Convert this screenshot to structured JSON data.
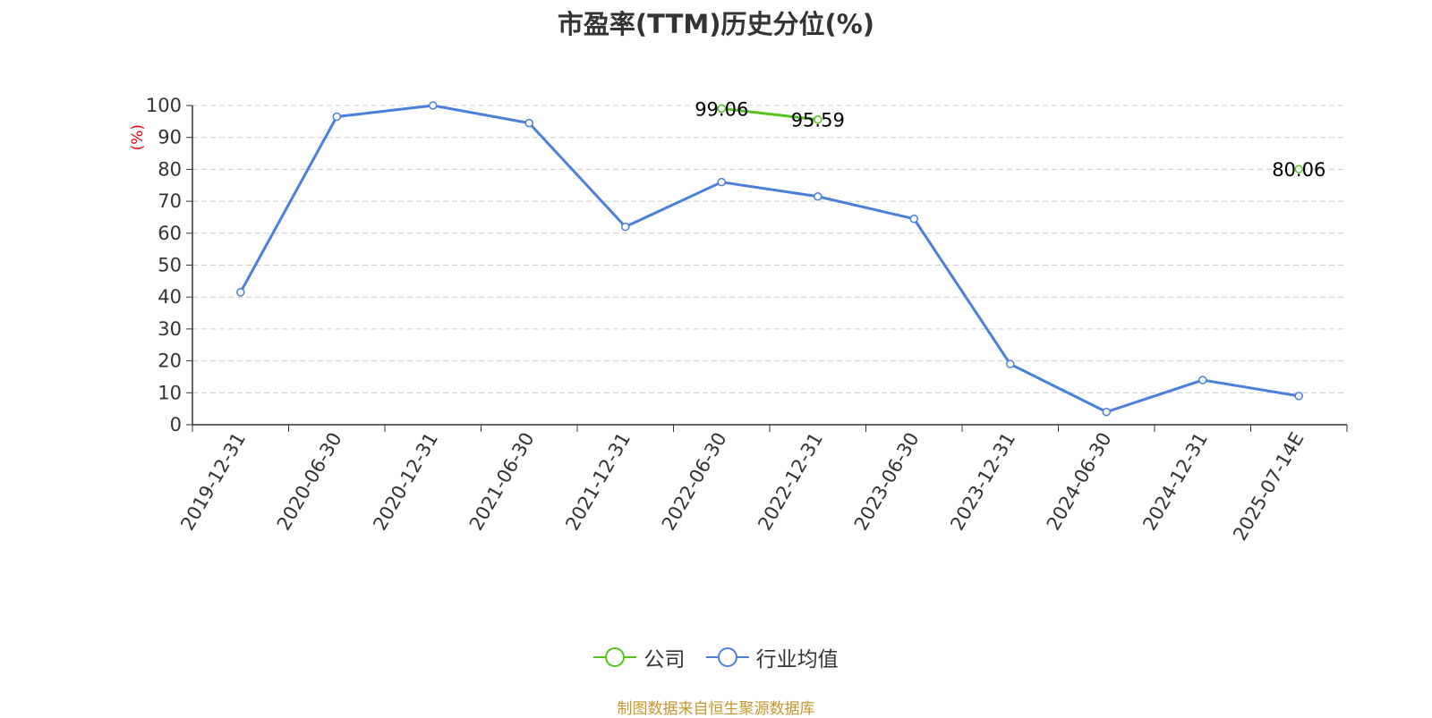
{
  "chart_data": {
    "type": "line",
    "title": "市盈率(TTM)历史分位(%)",
    "y_unit": "(%)",
    "ylim": [
      0,
      100
    ],
    "yticks": [
      0,
      10,
      20,
      30,
      40,
      50,
      60,
      70,
      80,
      90,
      100
    ],
    "categories": [
      "2019-12-31",
      "2020-06-30",
      "2020-12-31",
      "2021-06-30",
      "2021-12-31",
      "2022-06-30",
      "2022-12-31",
      "2023-06-30",
      "2023-12-31",
      "2024-06-30",
      "2024-12-31",
      "2025-07-14E"
    ],
    "series": [
      {
        "name": "公司",
        "color": "#52c41a",
        "values": [
          null,
          null,
          null,
          null,
          null,
          99.06,
          95.59,
          null,
          null,
          null,
          null,
          80.06
        ],
        "labels": [
          null,
          null,
          null,
          null,
          null,
          "99.06",
          "95.59",
          null,
          null,
          null,
          null,
          "80.06"
        ]
      },
      {
        "name": "行业均值",
        "color": "#4a7fdc",
        "values": [
          41.5,
          96.5,
          100,
          94.5,
          62,
          76,
          71.5,
          64.5,
          19,
          4,
          14,
          9
        ]
      }
    ],
    "grid": true,
    "legend_position": "bottom"
  },
  "footer": {
    "source": "制图数据来自恒生聚源数据库"
  }
}
